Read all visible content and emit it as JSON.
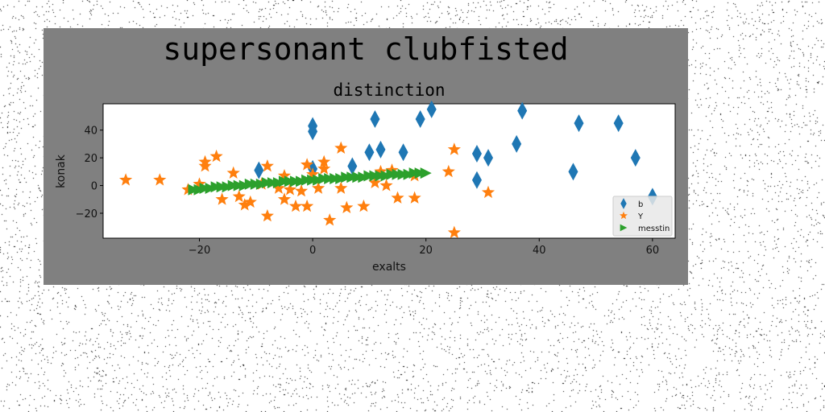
{
  "figure": {
    "suptitle": "supersonant clubfisted",
    "background_color": "#808080",
    "page_background": "#ffffff"
  },
  "chart_data": {
    "type": "scatter",
    "title": "distinction",
    "xlabel": "exalts",
    "ylabel": "konak",
    "xlim": [
      -37,
      64
    ],
    "ylim": [
      -38,
      59
    ],
    "xticks": [
      -20,
      0,
      20,
      40,
      60
    ],
    "yticks": [
      -20,
      0,
      20,
      40
    ],
    "xtick_labels": [
      "−20",
      "0",
      "20",
      "40",
      "60"
    ],
    "ytick_labels": [
      "−20",
      "0",
      "20",
      "40"
    ],
    "grid": false,
    "legend_position": "lower-right",
    "series": [
      {
        "name": "b",
        "marker": "thin-diamond",
        "color": "#1f77b4",
        "points": [
          [
            -9.5,
            11
          ],
          [
            0,
            43
          ],
          [
            0,
            39
          ],
          [
            0,
            12
          ],
          [
            7,
            14
          ],
          [
            10,
            24
          ],
          [
            11,
            48
          ],
          [
            12,
            26
          ],
          [
            16,
            24
          ],
          [
            19,
            48
          ],
          [
            21,
            55
          ],
          [
            29,
            23
          ],
          [
            29,
            4
          ],
          [
            31,
            20
          ],
          [
            36,
            30
          ],
          [
            37,
            54
          ],
          [
            46,
            10
          ],
          [
            47,
            45
          ],
          [
            54,
            45
          ],
          [
            57,
            20
          ],
          [
            60,
            -8
          ]
        ]
      },
      {
        "name": "Y",
        "marker": "star",
        "color": "#ff7f0e",
        "points": [
          [
            -33,
            4
          ],
          [
            -27,
            4
          ],
          [
            -22,
            -3
          ],
          [
            -20,
            1
          ],
          [
            -19,
            14
          ],
          [
            -19,
            17
          ],
          [
            -17,
            21
          ],
          [
            -16,
            -10
          ],
          [
            -14,
            9
          ],
          [
            -13,
            -8
          ],
          [
            -12,
            -14
          ],
          [
            -11,
            -12
          ],
          [
            -9,
            1
          ],
          [
            -8,
            -22
          ],
          [
            -8,
            14
          ],
          [
            -6,
            -2
          ],
          [
            -5,
            7
          ],
          [
            -5,
            -10
          ],
          [
            -4,
            -3
          ],
          [
            -3,
            -15
          ],
          [
            -2,
            -4
          ],
          [
            -1,
            15
          ],
          [
            -1,
            -15
          ],
          [
            0,
            8
          ],
          [
            1,
            -2
          ],
          [
            2,
            12
          ],
          [
            2,
            17
          ],
          [
            3,
            -25
          ],
          [
            5,
            27
          ],
          [
            5,
            -2
          ],
          [
            6,
            -16
          ],
          [
            9,
            -15
          ],
          [
            11,
            2
          ],
          [
            12,
            10
          ],
          [
            13,
            0
          ],
          [
            14,
            11
          ],
          [
            15,
            -9
          ],
          [
            18,
            7
          ],
          [
            18,
            -9
          ],
          [
            24,
            10
          ],
          [
            25,
            -34
          ],
          [
            25,
            26
          ],
          [
            31,
            -5
          ]
        ]
      },
      {
        "name": "messtin",
        "marker": "triangle-right",
        "color": "#2ca02c",
        "points": [
          [
            -21,
            -3
          ],
          [
            -20,
            -3
          ],
          [
            -19,
            -2
          ],
          [
            -18,
            -2
          ],
          [
            -17,
            -1
          ],
          [
            -16,
            -1
          ],
          [
            -15,
            -1
          ],
          [
            -14,
            0
          ],
          [
            -13,
            0
          ],
          [
            -12,
            0
          ],
          [
            -11,
            1
          ],
          [
            -10,
            1
          ],
          [
            -9,
            1
          ],
          [
            -8,
            2
          ],
          [
            -7,
            2
          ],
          [
            -6,
            2
          ],
          [
            -5,
            3
          ],
          [
            -4,
            3
          ],
          [
            -3,
            3
          ],
          [
            -2,
            3
          ],
          [
            -1,
            4
          ],
          [
            0,
            4
          ],
          [
            1,
            4
          ],
          [
            2,
            5
          ],
          [
            3,
            5
          ],
          [
            4,
            5
          ],
          [
            5,
            5
          ],
          [
            6,
            6
          ],
          [
            7,
            6
          ],
          [
            8,
            6
          ],
          [
            9,
            6
          ],
          [
            10,
            7
          ],
          [
            11,
            7
          ],
          [
            12,
            7
          ],
          [
            13,
            7
          ],
          [
            14,
            8
          ],
          [
            15,
            8
          ],
          [
            16,
            8
          ],
          [
            17,
            8
          ],
          [
            18,
            9
          ],
          [
            19,
            9
          ],
          [
            20,
            9
          ]
        ]
      }
    ]
  }
}
